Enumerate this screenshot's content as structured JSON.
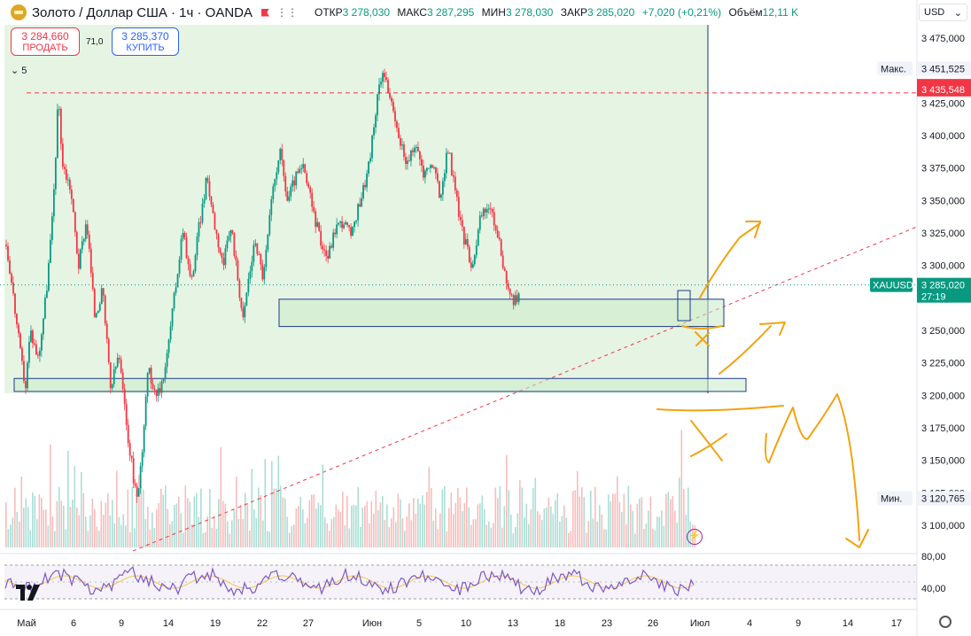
{
  "header": {
    "title": "Золото / Доллар США · 1ч · OANDA",
    "ohlc": [
      {
        "k": "ОТКР",
        "v": "3 278,030"
      },
      {
        "k": "МАКС",
        "v": "3 287,295"
      },
      {
        "k": "МИН",
        "v": "3 278,030"
      },
      {
        "k": "ЗАКР",
        "v": "3 285,020"
      },
      {
        "k": "",
        "v": "+7,020 (+0,21%)"
      },
      {
        "k": "Объём",
        "v": "12,11 K"
      }
    ]
  },
  "trade": {
    "sell_price": "3 284,660",
    "sell_label": "ПРОДАТЬ",
    "spread": "71,0",
    "buy_price": "3 285,370",
    "buy_label": "КУПИТЬ"
  },
  "collapse_count": "5",
  "currency": "USD",
  "colors": {
    "up": "#089981",
    "down": "#f23645",
    "zone": "#e6f4e4",
    "zone_border": "#1e3a8a",
    "rsi": "#7e57c2",
    "annotation": "#f2a30f"
  },
  "chart_data": {
    "type": "candlestick",
    "price_axis": {
      "min": 3100,
      "max": 3475,
      "ticks": [
        "3 475,000",
        "3 450,000",
        "3 425,000",
        "3 400,000",
        "3 375,000",
        "3 350,000",
        "3 325,000",
        "3 300,000",
        "3 275,000",
        "3 250,000",
        "3 225,000",
        "3 200,000",
        "3 175,000",
        "3 150,000",
        "3 125,000",
        "3 100,000"
      ],
      "tick_values": [
        3475,
        3450,
        3425,
        3400,
        3375,
        3350,
        3325,
        3300,
        3275,
        3250,
        3225,
        3200,
        3175,
        3150,
        3125,
        3100
      ]
    },
    "time_axis": {
      "labels": [
        "Май",
        "6",
        "9",
        "14",
        "19",
        "22",
        "27",
        "Июн",
        "5",
        "10",
        "13",
        "18",
        "23",
        "26",
        "Июл",
        "4",
        "9",
        "14",
        "17"
      ],
      "label_days": [
        1,
        6,
        9,
        14,
        19,
        22,
        27,
        32,
        36,
        41,
        44,
        49,
        54,
        57,
        62,
        65,
        70,
        75,
        78
      ]
    },
    "path": [
      [
        1,
        3316
      ],
      [
        1.5,
        3295
      ],
      [
        2,
        3270
      ],
      [
        2.8,
        3230
      ],
      [
        3.4,
        3206
      ],
      [
        4,
        3250
      ],
      [
        5,
        3228
      ],
      [
        6,
        3280
      ],
      [
        6.8,
        3340
      ],
      [
        7.5,
        3432
      ],
      [
        8,
        3378
      ],
      [
        9,
        3360
      ],
      [
        10,
        3300
      ],
      [
        11,
        3336
      ],
      [
        12,
        3262
      ],
      [
        13,
        3280
      ],
      [
        14,
        3204
      ],
      [
        15,
        3232
      ],
      [
        16,
        3175
      ],
      [
        17,
        3130
      ],
      [
        17.4,
        3120
      ],
      [
        18,
        3165
      ],
      [
        18.6,
        3220
      ],
      [
        19.2,
        3210
      ],
      [
        20,
        3200
      ],
      [
        21,
        3230
      ],
      [
        22,
        3280
      ],
      [
        23,
        3330
      ],
      [
        24,
        3285
      ],
      [
        25,
        3330
      ],
      [
        26,
        3368
      ],
      [
        27,
        3330
      ],
      [
        28,
        3300
      ],
      [
        29,
        3330
      ],
      [
        30,
        3282
      ],
      [
        30.5,
        3256
      ],
      [
        31,
        3284
      ],
      [
        32,
        3320
      ],
      [
        33,
        3290
      ],
      [
        34,
        3348
      ],
      [
        35,
        3390
      ],
      [
        36,
        3350
      ],
      [
        37,
        3368
      ],
      [
        38,
        3375
      ],
      [
        39,
        3347
      ],
      [
        40,
        3322
      ],
      [
        41,
        3306
      ],
      [
        42,
        3330
      ],
      [
        43,
        3334
      ],
      [
        44,
        3322
      ],
      [
        45,
        3350
      ],
      [
        46,
        3372
      ],
      [
        47,
        3418
      ],
      [
        47.6,
        3445
      ],
      [
        48,
        3452
      ],
      [
        49,
        3420
      ],
      [
        50,
        3395
      ],
      [
        51,
        3378
      ],
      [
        52,
        3393
      ],
      [
        53,
        3369
      ],
      [
        54,
        3380
      ],
      [
        55,
        3352
      ],
      [
        56,
        3391
      ],
      [
        57,
        3352
      ],
      [
        58,
        3320
      ],
      [
        59,
        3300
      ],
      [
        60,
        3336
      ],
      [
        61,
        3347
      ],
      [
        62,
        3328
      ],
      [
        63,
        3296
      ],
      [
        64,
        3270
      ],
      [
        64.5,
        3275
      ],
      [
        65,
        3285
      ]
    ],
    "levels": [
      {
        "label": "Макс.",
        "value": "3 451,525",
        "y": 3451.525
      },
      {
        "label": "",
        "value": "3 438,077",
        "y": 3438.077
      },
      {
        "label": "",
        "value": "3 435,548",
        "y": 3435.548
      },
      {
        "label": "XAUUSD",
        "value": "3 285,020",
        "y": 3285.02,
        "countdown": "27:19"
      },
      {
        "label": "Мин.",
        "value": "3 120,765",
        "y": 3120.765
      }
    ],
    "resistance": 3435.548,
    "zones": [
      {
        "y1": 3203,
        "y2": 3213,
        "x1": 1,
        "x2": 68
      },
      {
        "y1": 3253,
        "y2": 3274,
        "x1": 26,
        "x2": 66
      }
    ],
    "rsi": {
      "ticks": [
        "80,00",
        "40,00"
      ],
      "tick_values": [
        80,
        40
      ]
    }
  }
}
